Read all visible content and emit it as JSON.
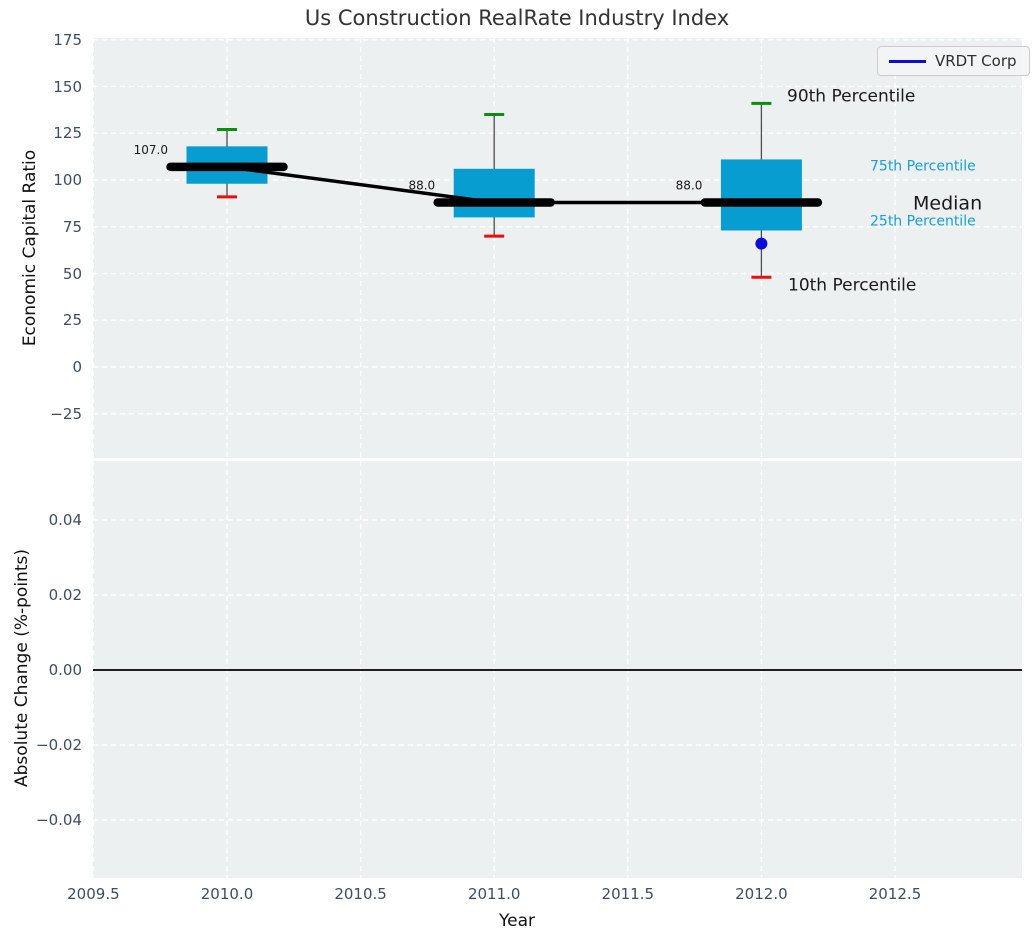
{
  "figure_title": "Us Construction RealRate Industry Index",
  "legend": {
    "label": "VRDT Corp",
    "line_color": "#0d0dd8"
  },
  "chart_data": {
    "type": "boxplot",
    "title": "Us Construction RealRate Industry Index",
    "xlabel": "Year",
    "x_ticks": [
      {
        "value": 2009.5,
        "label": "2009.5"
      },
      {
        "value": 2010.0,
        "label": "2010.0"
      },
      {
        "value": 2010.5,
        "label": "2010.5"
      },
      {
        "value": 2011.0,
        "label": "2011.0"
      },
      {
        "value": 2011.5,
        "label": "2011.5"
      },
      {
        "value": 2012.0,
        "label": "2012.0"
      },
      {
        "value": 2012.5,
        "label": "2012.5"
      }
    ],
    "xlim": [
      2009.5,
      2012.98
    ],
    "grid": "white-dashed",
    "top_panel": {
      "ylabel": "Economic Capital Ratio",
      "ylim": [
        -48.5,
        176.5
      ],
      "y_ticks": [
        {
          "value": 175,
          "label": "175"
        },
        {
          "value": 150,
          "label": "150"
        },
        {
          "value": 125,
          "label": "125"
        },
        {
          "value": 100,
          "label": "100"
        },
        {
          "value": 75,
          "label": "75"
        },
        {
          "value": 50,
          "label": "50"
        },
        {
          "value": 25,
          "label": "25"
        },
        {
          "value": 0,
          "label": "0"
        },
        {
          "value": -25,
          "label": "−25"
        }
      ],
      "boxes": [
        {
          "year": 2010,
          "p10": 91,
          "p25": 98,
          "median": 107,
          "p75": 118,
          "p90": 127,
          "median_label": "107.0"
        },
        {
          "year": 2011,
          "p10": 70,
          "p25": 80,
          "median": 88,
          "p75": 106,
          "p90": 135,
          "median_label": "88.0"
        },
        {
          "year": 2012,
          "p10": 48,
          "p25": 73,
          "median": 88,
          "p75": 111,
          "p90": 141,
          "median_label": "88.0"
        }
      ],
      "median_trend": {
        "years": [
          2010,
          2011,
          2012
        ],
        "values": [
          107,
          88,
          88
        ]
      },
      "company_point": {
        "series": "VRDT Corp",
        "year": 2012,
        "value": 66
      },
      "annotations": [
        {
          "label": "90th Percentile",
          "percentile": "p90",
          "style": "dark"
        },
        {
          "label": "75th Percentile",
          "percentile": "p75",
          "style": "accent"
        },
        {
          "label": "Median",
          "percentile": "median",
          "style": "dark-large"
        },
        {
          "label": "25th Percentile",
          "percentile": "p25",
          "style": "accent"
        },
        {
          "label": "10th Percentile",
          "percentile": "p10",
          "style": "dark"
        }
      ]
    },
    "bottom_panel": {
      "ylabel": "Absolute Change (%-points)",
      "ylim": [
        -0.0557,
        0.0557
      ],
      "y_ticks": [
        {
          "value": 0.04,
          "label": "0.04"
        },
        {
          "value": 0.02,
          "label": "0.02"
        },
        {
          "value": 0.0,
          "label": "0.00"
        },
        {
          "value": -0.02,
          "label": "−0.02"
        },
        {
          "value": -0.04,
          "label": "−0.04"
        }
      ],
      "zero_line": 0.0
    },
    "colors": {
      "plot_background": "#ecf0f1",
      "grid": "#ffffff",
      "box_fill": "#089dd1",
      "whisker": "#4d4d4d",
      "p90_cap": "#0a8f0a",
      "p10_cap": "#ec0e0e",
      "median_line": "#000000",
      "company_point": "#0d0dd8",
      "accent_text": "#18a0d4",
      "dark_text": "#1a1a1a",
      "tick_text": "#3e4d63"
    }
  }
}
